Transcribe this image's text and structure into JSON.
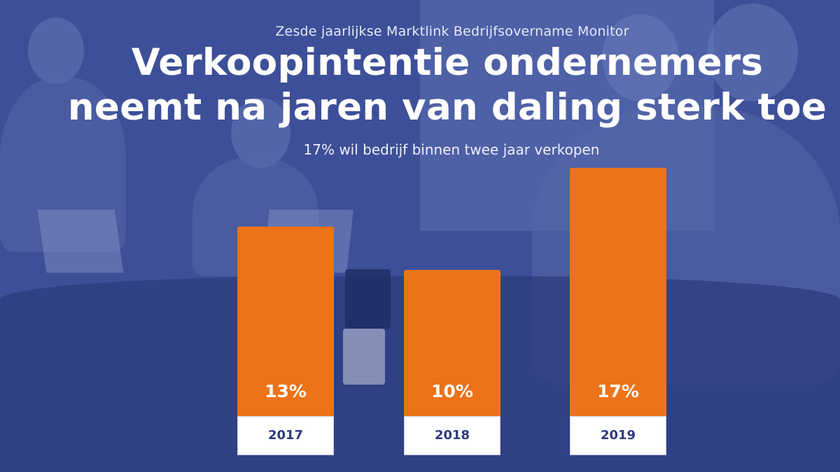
{
  "header": {
    "subtitle": "Zesde jaarlijkse Marktlink Bedrijfsovername Monitor",
    "headline_line1": "Verkoopintentie ondernemers",
    "headline_line2": "neemt na jaren van daling sterk toe",
    "tagline": "17% wil bedrijf binnen twee jaar verkopen"
  },
  "chart_data": {
    "type": "bar",
    "categories": [
      "2017",
      "2018",
      "2019"
    ],
    "values": [
      13,
      10,
      17
    ],
    "value_labels": [
      "13%",
      "10%",
      "17%"
    ],
    "unit": "%",
    "title": "",
    "xlabel": "",
    "ylabel": "",
    "bar_color": "#ec7318",
    "label_box_color": "#ffffff"
  },
  "colors": {
    "background_overlay": "#3d4f98",
    "bar": "#ec7318",
    "year_text": "#2d3a7e",
    "headline_text": "#ffffff"
  }
}
